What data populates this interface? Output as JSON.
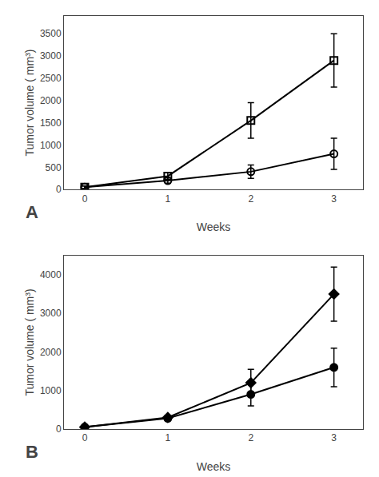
{
  "chart_data": [
    {
      "type": "line",
      "annotations": [
        "A"
      ],
      "x_label": "Weeks",
      "y_label": "Tumor volume ( mm³)",
      "x": [
        0,
        1,
        2,
        3
      ],
      "series": [
        {
          "values": [
            50,
            300,
            1550,
            2900
          ],
          "yerr": [
            30,
            80,
            400,
            600
          ],
          "color": "#000000",
          "marker": "square-open"
        },
        {
          "values": [
            50,
            200,
            400,
            800
          ],
          "yerr": [
            30,
            60,
            150,
            350
          ],
          "color": "#000000",
          "marker": "circle-open"
        }
      ],
      "xlim": [
        -0.25,
        3.35
      ],
      "xticks": [
        0,
        1,
        2,
        3
      ],
      "ylim": [
        0,
        3900
      ],
      "yticks": [
        0,
        500,
        1000,
        1500,
        2000,
        2500,
        3000,
        3500
      ],
      "grid": false
    },
    {
      "type": "line",
      "annotations": [
        "B"
      ],
      "x_label": "Weeks",
      "y_label": "Tumor volume ( mm³)",
      "x": [
        0,
        1,
        2,
        3
      ],
      "series": [
        {
          "values": [
            50,
            300,
            1200,
            3500
          ],
          "yerr": [
            20,
            60,
            350,
            700
          ],
          "color": "#000000",
          "marker": "diamond"
        },
        {
          "values": [
            50,
            280,
            900,
            1600
          ],
          "yerr": [
            20,
            60,
            300,
            500
          ],
          "color": "#000000",
          "marker": "circle"
        }
      ],
      "xlim": [
        -0.25,
        3.35
      ],
      "xticks": [
        0,
        1,
        2,
        3
      ],
      "ylim": [
        0,
        4500
      ],
      "yticks": [
        0,
        1000,
        2000,
        3000,
        4000
      ],
      "grid": false
    }
  ]
}
